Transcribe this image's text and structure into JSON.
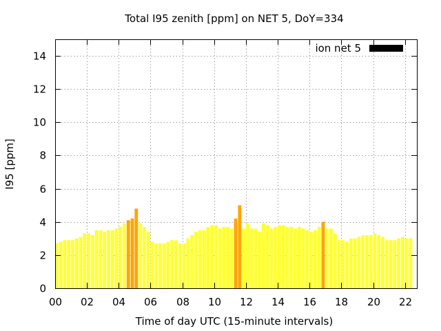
{
  "chart_data": {
    "type": "bar",
    "title": "Total I95 zenith [ppm] on NET 5, DoY=334",
    "xlabel": "Time of day UTC (15-minute intervals)",
    "ylabel": "I95 [ppm]",
    "xlim": [
      0,
      22.75
    ],
    "ylim": [
      0,
      15
    ],
    "x_ticks": [
      "00",
      "02",
      "04",
      "06",
      "08",
      "10",
      "12",
      "14",
      "16",
      "18",
      "20",
      "22"
    ],
    "y_ticks": [
      "0",
      "2",
      "4",
      "6",
      "8",
      "10",
      "12",
      "14"
    ],
    "interval_hours": 0.25,
    "grid": true,
    "legend": {
      "label": "ion net 5",
      "color": "#000000",
      "position": "top-right"
    },
    "colors": {
      "low": "#ffff33",
      "elevated": "#ffa500"
    },
    "elevated_threshold": 4.0,
    "series": [
      {
        "name": "ion net 5",
        "values": [
          2.7,
          2.8,
          2.9,
          2.9,
          2.9,
          3.0,
          3.1,
          3.3,
          3.3,
          3.2,
          3.5,
          3.5,
          3.4,
          3.5,
          3.5,
          3.6,
          3.7,
          3.9,
          4.1,
          4.2,
          4.8,
          3.9,
          3.7,
          3.4,
          2.8,
          2.7,
          2.7,
          2.7,
          2.8,
          2.9,
          2.9,
          2.7,
          2.7,
          3.0,
          3.2,
          3.4,
          3.5,
          3.5,
          3.7,
          3.8,
          3.8,
          3.6,
          3.7,
          3.7,
          3.6,
          4.2,
          5.0,
          3.6,
          3.9,
          3.6,
          3.6,
          3.4,
          3.9,
          3.8,
          3.6,
          3.7,
          3.8,
          3.8,
          3.7,
          3.7,
          3.6,
          3.7,
          3.6,
          3.5,
          3.4,
          3.5,
          3.7,
          4.0,
          3.6,
          3.6,
          3.3,
          2.9,
          2.9,
          2.8,
          3.0,
          3.0,
          3.1,
          3.2,
          3.2,
          3.2,
          3.3,
          3.2,
          3.1,
          2.9,
          2.9,
          2.9,
          3.0,
          3.1,
          3.0,
          3.0
        ]
      }
    ]
  }
}
